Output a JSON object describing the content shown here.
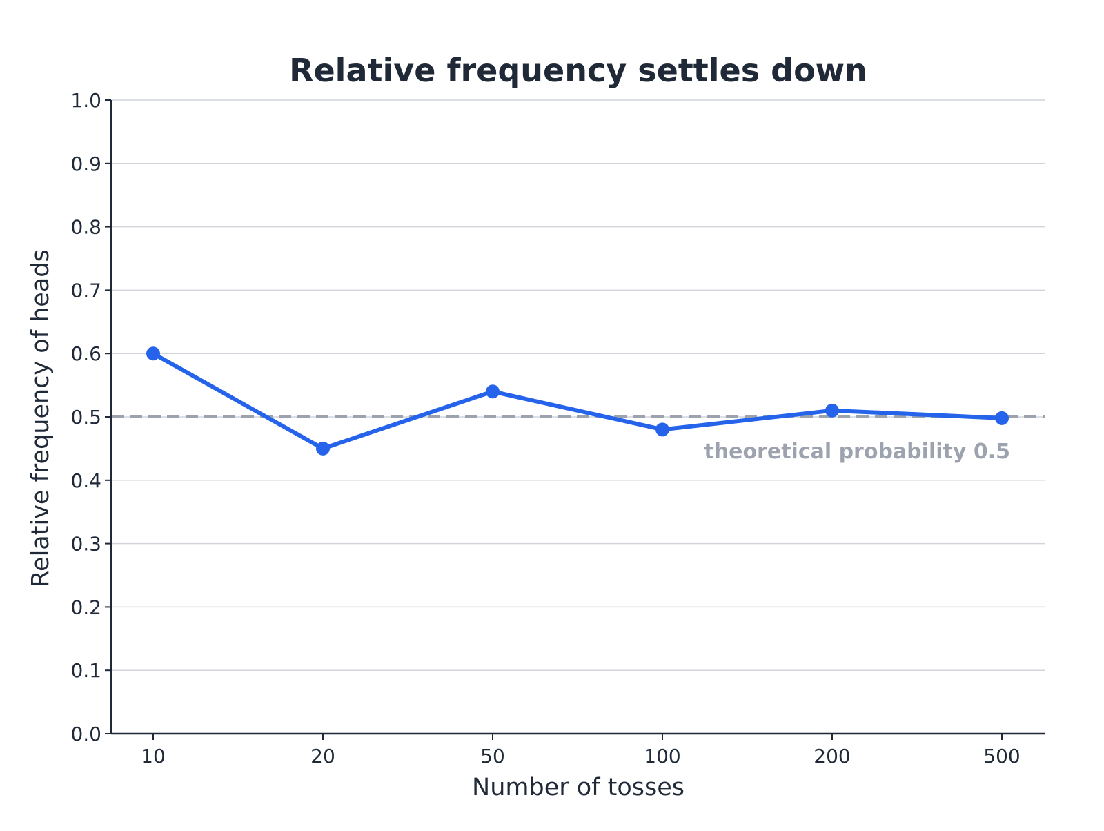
{
  "chart_data": {
    "type": "line",
    "title": "Relative frequency settles down",
    "xlabel": "Number of tosses",
    "ylabel": "Relative frequency of heads",
    "categories": [
      "10",
      "20",
      "50",
      "100",
      "200",
      "500"
    ],
    "series": [
      {
        "values": [
          0.6,
          0.45,
          0.54,
          0.48,
          0.51,
          0.498
        ]
      }
    ],
    "ylim": [
      0,
      1
    ],
    "yticks": [
      "0.0",
      "0.1",
      "0.2",
      "0.3",
      "0.4",
      "0.5",
      "0.6",
      "0.7",
      "0.8",
      "0.9",
      "1.0"
    ],
    "grid": "horizontal",
    "reference_line": {
      "value": 0.5,
      "label": "theoretical probability 0.5"
    },
    "colors": {
      "series": "#2563eb",
      "reference": "#9ca3af",
      "grid": "#d1d5db",
      "axis": "#1f2937"
    }
  }
}
